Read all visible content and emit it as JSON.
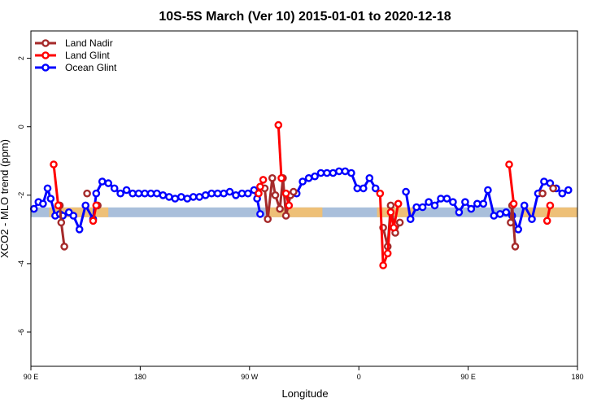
{
  "chart_data": {
    "type": "line",
    "title": "10S-5S March (Ver 10)   2015-01-01 to 2020-12-18",
    "xlabel": "Longitude",
    "ylabel": "XCO2 - MLO trend (ppm)",
    "xlim": [
      90,
      450
    ],
    "ylim": [
      -7,
      2.8
    ],
    "x_ticks": [
      {
        "value": 90,
        "label": "90 E"
      },
      {
        "value": 162,
        "label": "180"
      },
      {
        "value": 234,
        "label": "90 W"
      },
      {
        "value": 306,
        "label": "0"
      },
      {
        "value": 378,
        "label": "90 E"
      },
      {
        "value": 450,
        "label": "180"
      }
    ],
    "y_ticks": [
      {
        "value": 2,
        "label": "2"
      },
      {
        "value": 0,
        "label": "0"
      },
      {
        "value": -2,
        "label": "-2"
      },
      {
        "value": -4,
        "label": "-4"
      },
      {
        "value": -6,
        "label": "-6"
      }
    ],
    "legend": {
      "position": "top-left"
    },
    "band": {
      "y_center": -2.5,
      "color": "#a9bfdb"
    },
    "land_bands": [
      {
        "x0": 102,
        "x1": 141,
        "color": "#f5c06b"
      },
      {
        "x0": 246,
        "x1": 282,
        "color": "#f5c06b"
      },
      {
        "x0": 318,
        "x1": 342,
        "color": "#f5c06b"
      },
      {
        "x0": 414,
        "x1": 450,
        "color": "#f5c06b"
      }
    ],
    "series": [
      {
        "name": "Land Nadir",
        "color": "#a52a2a",
        "segments": [
          [
            [
              109,
              -2.3
            ],
            [
              110,
              -2.8
            ],
            [
              112,
              -3.5
            ]
          ],
          [
            [
              127,
              -1.95
            ]
          ],
          [
            [
              134,
              -2.3
            ]
          ],
          [
            [
              244,
              -1.8
            ],
            [
              246,
              -2.7
            ],
            [
              249,
              -1.5
            ],
            [
              251,
              -2.0
            ],
            [
              254,
              -2.4
            ],
            [
              256,
              -1.5
            ],
            [
              258,
              -2.6
            ],
            [
              261,
              -2.0
            ],
            [
              263,
              -1.9
            ]
          ],
          [
            [
              322,
              -2.95
            ],
            [
              325,
              -3.5
            ],
            [
              327,
              -2.3
            ],
            [
              330,
              -3.1
            ],
            [
              333,
              -2.8
            ]
          ],
          [
            [
              406,
              -2.8
            ],
            [
              407,
              -2.3
            ],
            [
              409,
              -3.5
            ]
          ],
          [
            [
              427,
              -1.95
            ]
          ],
          [
            [
              434,
              -1.8
            ]
          ]
        ]
      },
      {
        "name": "Land Glint",
        "color": "#ff0000",
        "segments": [
          [
            [
              105,
              -1.1
            ],
            [
              108,
              -2.3
            ]
          ],
          [
            [
              131,
              -2.75
            ],
            [
              133,
              -2.3
            ]
          ],
          [
            [
              240,
              -1.95
            ],
            [
              241,
              -1.75
            ],
            [
              243,
              -1.55
            ]
          ],
          [
            [
              253,
              0.05
            ],
            [
              255,
              -1.5
            ]
          ],
          [
            [
              258,
              -1.95
            ],
            [
              260,
              -2.3
            ]
          ],
          [
            [
              320,
              -1.95
            ],
            [
              322,
              -4.05
            ],
            [
              325,
              -3.7
            ],
            [
              327,
              -2.5
            ],
            [
              329,
              -2.95
            ],
            [
              332,
              -2.25
            ]
          ],
          [
            [
              405,
              -1.1
            ],
            [
              408,
              -2.25
            ]
          ],
          [
            [
              430,
              -2.75
            ],
            [
              432,
              -2.3
            ]
          ]
        ]
      },
      {
        "name": "Ocean Glint",
        "color": "#0000ff",
        "segments": [
          [
            [
              92,
              -2.4
            ],
            [
              95,
              -2.2
            ],
            [
              98,
              -2.25
            ],
            [
              101,
              -1.8
            ],
            [
              103,
              -2.1
            ],
            [
              106,
              -2.6
            ],
            [
              109,
              -2.55
            ],
            [
              111,
              -2.6
            ],
            [
              115,
              -2.5
            ],
            [
              118,
              -2.6
            ],
            [
              122,
              -3.0
            ],
            [
              126,
              -2.3
            ],
            [
              131,
              -2.7
            ],
            [
              133,
              -1.95
            ],
            [
              137,
              -1.6
            ],
            [
              141,
              -1.65
            ],
            [
              145,
              -1.8
            ],
            [
              149,
              -1.95
            ],
            [
              153,
              -1.85
            ],
            [
              157,
              -1.95
            ],
            [
              161,
              -1.95
            ],
            [
              165,
              -1.95
            ],
            [
              169,
              -1.95
            ],
            [
              173,
              -1.95
            ],
            [
              177,
              -2.0
            ],
            [
              181,
              -2.05
            ],
            [
              185,
              -2.1
            ],
            [
              189,
              -2.05
            ],
            [
              193,
              -2.1
            ],
            [
              197,
              -2.05
            ],
            [
              201,
              -2.05
            ],
            [
              205,
              -2.0
            ],
            [
              209,
              -1.95
            ],
            [
              213,
              -1.95
            ],
            [
              217,
              -1.95
            ],
            [
              221,
              -1.9
            ],
            [
              225,
              -2.0
            ],
            [
              229,
              -1.95
            ],
            [
              233,
              -1.95
            ],
            [
              237,
              -1.85
            ],
            [
              239,
              -2.1
            ],
            [
              241,
              -2.55
            ]
          ],
          [
            [
              265,
              -1.95
            ],
            [
              269,
              -1.6
            ],
            [
              273,
              -1.5
            ],
            [
              277,
              -1.45
            ],
            [
              281,
              -1.35
            ],
            [
              285,
              -1.35
            ],
            [
              289,
              -1.35
            ],
            [
              293,
              -1.3
            ],
            [
              297,
              -1.3
            ],
            [
              301,
              -1.35
            ],
            [
              305,
              -1.8
            ],
            [
              309,
              -1.8
            ],
            [
              313,
              -1.5
            ],
            [
              317,
              -1.8
            ]
          ],
          [
            [
              337,
              -1.9
            ],
            [
              340,
              -2.7
            ],
            [
              344,
              -2.35
            ],
            [
              348,
              -2.35
            ],
            [
              352,
              -2.2
            ],
            [
              356,
              -2.3
            ],
            [
              360,
              -2.1
            ],
            [
              364,
              -2.1
            ],
            [
              368,
              -2.2
            ],
            [
              372,
              -2.5
            ],
            [
              376,
              -2.2
            ],
            [
              380,
              -2.4
            ],
            [
              384,
              -2.25
            ],
            [
              388,
              -2.25
            ],
            [
              391,
              -1.85
            ],
            [
              395,
              -2.6
            ],
            [
              399,
              -2.55
            ],
            [
              403,
              -2.5
            ],
            [
              407,
              -2.6
            ],
            [
              411,
              -3.0
            ],
            [
              415,
              -2.3
            ],
            [
              420,
              -2.7
            ],
            [
              424,
              -1.95
            ],
            [
              428,
              -1.6
            ],
            [
              432,
              -1.65
            ],
            [
              436,
              -1.8
            ],
            [
              440,
              -1.95
            ],
            [
              444,
              -1.85
            ]
          ]
        ]
      }
    ]
  }
}
